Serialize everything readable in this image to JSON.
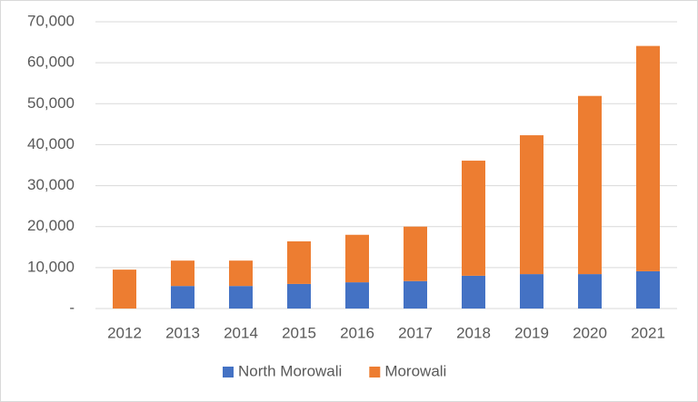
{
  "chart_data": {
    "type": "stacked-bar",
    "categories": [
      "2012",
      "2013",
      "2014",
      "2015",
      "2016",
      "2017",
      "2018",
      "2019",
      "2020",
      "2021"
    ],
    "series": [
      {
        "name": "North Morowali",
        "color": "#4472c4",
        "values": [
          0,
          5500,
          5500,
          6000,
          6400,
          6700,
          8000,
          8400,
          8400,
          9100
        ]
      },
      {
        "name": "Morowali",
        "color": "#ed7d31",
        "values": [
          9500,
          6200,
          6200,
          10400,
          11600,
          13300,
          28100,
          33900,
          43500,
          55000
        ]
      }
    ],
    "ylim": [
      0,
      70000
    ],
    "yticks": [
      {
        "value": 0,
        "label": "-"
      },
      {
        "value": 10000,
        "label": "10,000"
      },
      {
        "value": 20000,
        "label": "20,000"
      },
      {
        "value": 30000,
        "label": "30,000"
      },
      {
        "value": 40000,
        "label": "40,000"
      },
      {
        "value": 50000,
        "label": "50,000"
      },
      {
        "value": 60000,
        "label": "60,000"
      },
      {
        "value": 70000,
        "label": "70,000"
      }
    ],
    "grid": true,
    "legend": "bottom"
  }
}
